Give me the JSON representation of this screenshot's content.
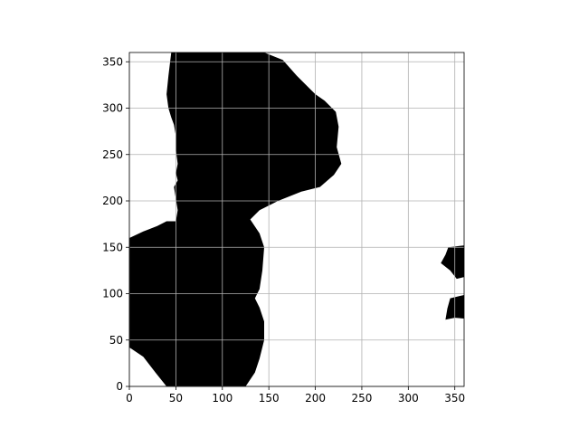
{
  "chart_data": {
    "type": "heatmap",
    "title": "",
    "xlabel": "",
    "ylabel": "",
    "xlim": [
      0,
      360
    ],
    "ylim": [
      0,
      360
    ],
    "grid": true,
    "x_ticks": [
      "0",
      "50",
      "100",
      "150",
      "200",
      "250",
      "300",
      "350"
    ],
    "y_ticks": [
      "0",
      "50",
      "100",
      "150",
      "200",
      "250",
      "300",
      "350"
    ],
    "colors": {
      "fill": "#000000",
      "background": "#ffffff",
      "grid": "#b0b0b0"
    },
    "regions": [
      {
        "name": "main-region",
        "points": [
          [
            45,
            360
          ],
          [
            145,
            360
          ],
          [
            165,
            352
          ],
          [
            180,
            335
          ],
          [
            195,
            320
          ],
          [
            200,
            315
          ],
          [
            210,
            308
          ],
          [
            222,
            296
          ],
          [
            225,
            280
          ],
          [
            223,
            258
          ],
          [
            228,
            240
          ],
          [
            220,
            228
          ],
          [
            205,
            215
          ],
          [
            185,
            210
          ],
          [
            160,
            200
          ],
          [
            140,
            190
          ],
          [
            130,
            180
          ],
          [
            140,
            165
          ],
          [
            145,
            150
          ],
          [
            143,
            125
          ],
          [
            140,
            105
          ],
          [
            135,
            95
          ],
          [
            140,
            85
          ],
          [
            145,
            70
          ],
          [
            145,
            50
          ],
          [
            140,
            30
          ],
          [
            135,
            15
          ],
          [
            125,
            0
          ],
          [
            40,
            0
          ],
          [
            28,
            15
          ],
          [
            15,
            32
          ],
          [
            0,
            42
          ],
          [
            0,
            160
          ],
          [
            15,
            167
          ],
          [
            30,
            173
          ],
          [
            40,
            178
          ],
          [
            50,
            178
          ],
          [
            52,
            190
          ],
          [
            50,
            202
          ],
          [
            48,
            215
          ],
          [
            52,
            222
          ],
          [
            50,
            230
          ],
          [
            52,
            240
          ],
          [
            50,
            255
          ],
          [
            50,
            270
          ],
          [
            48,
            282
          ],
          [
            45,
            290
          ],
          [
            42,
            300
          ],
          [
            40,
            315
          ],
          [
            42,
            335
          ]
        ]
      },
      {
        "name": "right-upper-blob",
        "points": [
          [
            343,
            150
          ],
          [
            360,
            152
          ],
          [
            360,
            118
          ],
          [
            352,
            116
          ],
          [
            345,
            125
          ],
          [
            335,
            133
          ],
          [
            340,
            142
          ]
        ]
      },
      {
        "name": "right-lower-blob",
        "points": [
          [
            345,
            95
          ],
          [
            362,
            99
          ],
          [
            362,
            73
          ],
          [
            350,
            74
          ],
          [
            340,
            72
          ],
          [
            342,
            84
          ]
        ]
      }
    ]
  }
}
